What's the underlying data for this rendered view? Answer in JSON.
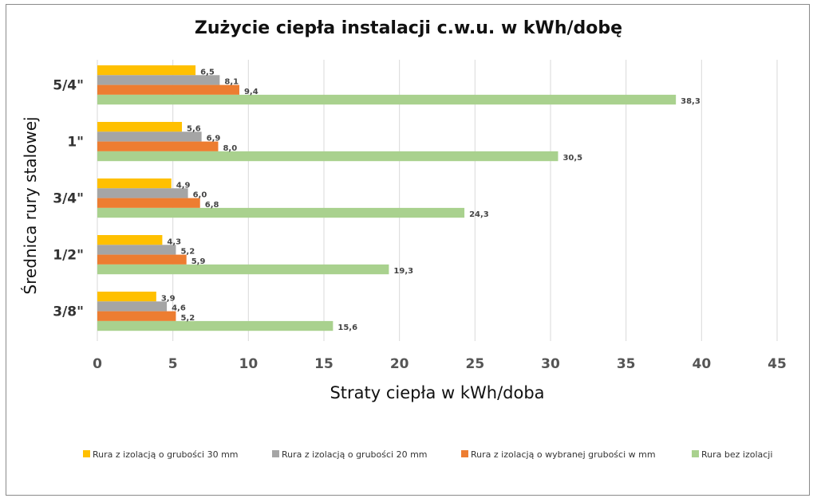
{
  "chart_data": {
    "type": "bar",
    "orientation": "horizontal",
    "title": "Zużycie ciepła instalacji c.w.u.  w kWh/dobę",
    "xlabel": "Straty ciepła w kWh/doba",
    "ylabel": "Średnica rury stalowej",
    "categories": [
      "5/4\"",
      "1\"",
      "3/4\"",
      "1/2\"",
      "3/8\""
    ],
    "xlim": [
      0,
      45
    ],
    "xticks": [
      "0",
      "5",
      "10",
      "15",
      "20",
      "25",
      "30",
      "35",
      "40",
      "45"
    ],
    "grid": "vertical",
    "legend_position": "bottom",
    "series": [
      {
        "name": "Rura z izolacją o grubości 30 mm",
        "color": "#ffc000",
        "values": [
          6.5,
          5.6,
          4.9,
          4.3,
          3.9
        ],
        "labels": [
          "6,5",
          "5,6",
          "4,9",
          "4,3",
          "3,9"
        ]
      },
      {
        "name": "Rura z izolacją o grubości 20 mm",
        "color": "#a5a5a5",
        "values": [
          8.1,
          6.9,
          6.0,
          5.2,
          4.6
        ],
        "labels": [
          "8,1",
          "6,9",
          "6,0",
          "5,2",
          "4,6"
        ]
      },
      {
        "name": "Rura z izolacją o wybranej grubości w mm",
        "color": "#ed7d31",
        "values": [
          9.4,
          8.0,
          6.8,
          5.9,
          5.2
        ],
        "labels": [
          "9,4",
          "8,0",
          "6,8",
          "5,9",
          "5,2"
        ]
      },
      {
        "name": "Rura bez izolacji",
        "color": "#a9d18e",
        "values": [
          38.3,
          30.5,
          24.3,
          19.3,
          15.6
        ],
        "labels": [
          "38,3",
          "30,5",
          "24,3",
          "19,3",
          "15,6"
        ]
      }
    ]
  }
}
